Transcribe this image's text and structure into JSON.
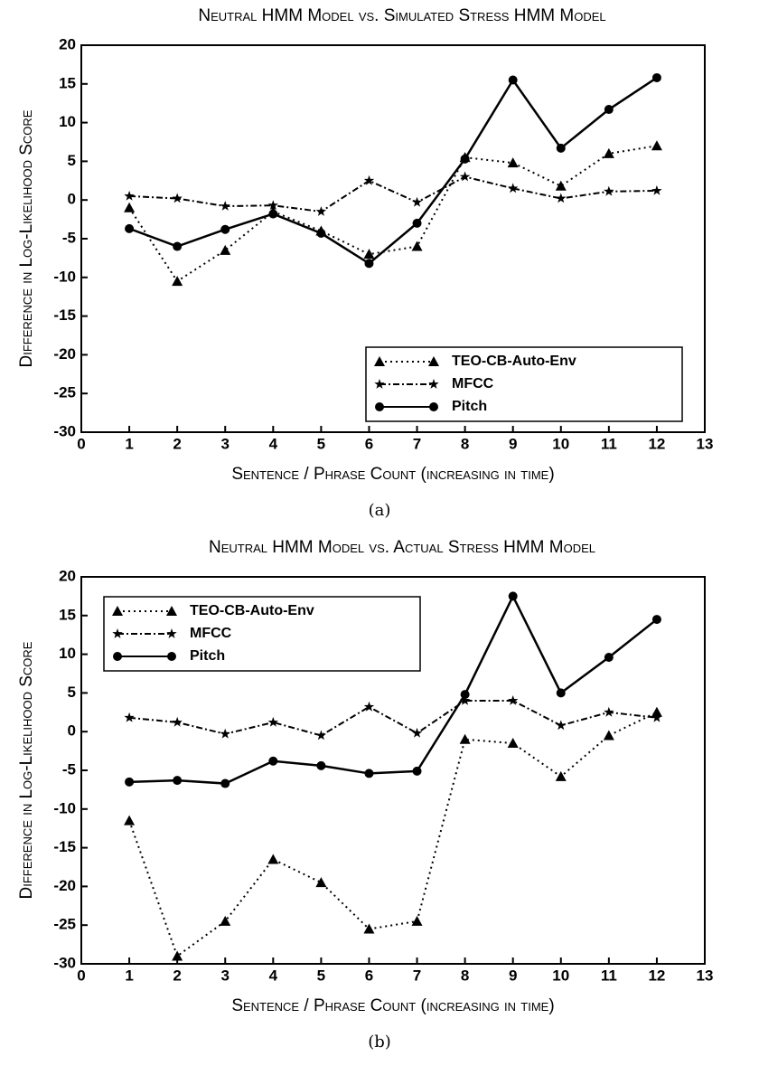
{
  "chart_data": [
    {
      "type": "line",
      "title": "Neutral HMM Model vs. Simulated Stress HMM Model",
      "xlabel": "Sentence / Phrase Count (increasing in time)",
      "ylabel": "Difference in Log-Likelihood Score",
      "caption": "(a)",
      "x": [
        1,
        2,
        3,
        4,
        5,
        6,
        7,
        8,
        9,
        10,
        11,
        12
      ],
      "xlim": [
        0,
        13
      ],
      "xticks": [
        0,
        1,
        2,
        3,
        4,
        5,
        6,
        7,
        8,
        9,
        10,
        11,
        12,
        13
      ],
      "ylim": [
        -30,
        20
      ],
      "yticks": [
        -30,
        -25,
        -20,
        -15,
        -10,
        -5,
        0,
        5,
        10,
        15,
        20
      ],
      "legend": "lower right",
      "series": [
        {
          "name": "TEO-CB-Auto-Env",
          "color": "#000000",
          "style": "dotted",
          "marker": "triangle",
          "values": [
            -1,
            -10.5,
            -6.5,
            -1.5,
            -4,
            -7,
            -6,
            5.5,
            4.8,
            1.8,
            6,
            7
          ]
        },
        {
          "name": "MFCC",
          "color": "#000000",
          "style": "dashdot",
          "marker": "star",
          "values": [
            0.5,
            0.2,
            -0.8,
            -0.7,
            -1.5,
            2.5,
            -0.3,
            3,
            1.5,
            0.2,
            1.1,
            1.2
          ]
        },
        {
          "name": "Pitch",
          "color": "#000000",
          "style": "solid",
          "marker": "circle",
          "values": [
            -3.7,
            -6,
            -3.8,
            -1.8,
            -4.3,
            -8.2,
            -3,
            5.3,
            15.5,
            6.7,
            11.7,
            15.8
          ]
        }
      ]
    },
    {
      "type": "line",
      "title": "Neutral HMM Model vs. Actual Stress HMM Model",
      "xlabel": "Sentence / Phrase Count (increasing in time)",
      "ylabel": "Difference in Log-Likelihood Score",
      "caption": "(b)",
      "x": [
        1,
        2,
        3,
        4,
        5,
        6,
        7,
        8,
        9,
        10,
        11,
        12
      ],
      "xlim": [
        0,
        13
      ],
      "xticks": [
        0,
        1,
        2,
        3,
        4,
        5,
        6,
        7,
        8,
        9,
        10,
        11,
        12,
        13
      ],
      "ylim": [
        -30,
        20
      ],
      "yticks": [
        -30,
        -25,
        -20,
        -15,
        -10,
        -5,
        0,
        5,
        10,
        15,
        20
      ],
      "legend": "upper left",
      "series": [
        {
          "name": "TEO-CB-Auto-Env",
          "color": "#000000",
          "style": "dotted",
          "marker": "triangle",
          "values": [
            -11.5,
            -29,
            -24.5,
            -16.5,
            -19.5,
            -25.5,
            -24.5,
            -1,
            -1.5,
            -5.8,
            -0.5,
            2.5
          ]
        },
        {
          "name": "MFCC",
          "color": "#000000",
          "style": "dashdot",
          "marker": "star",
          "values": [
            1.8,
            1.2,
            -0.3,
            1.2,
            -0.5,
            3.2,
            -0.2,
            4,
            4,
            0.8,
            2.5,
            1.8
          ]
        },
        {
          "name": "Pitch",
          "color": "#000000",
          "style": "solid",
          "marker": "circle",
          "values": [
            -6.5,
            -6.3,
            -6.7,
            -3.8,
            -4.4,
            -5.4,
            -5.1,
            4.8,
            17.5,
            5,
            9.6,
            14.5
          ]
        }
      ]
    }
  ]
}
